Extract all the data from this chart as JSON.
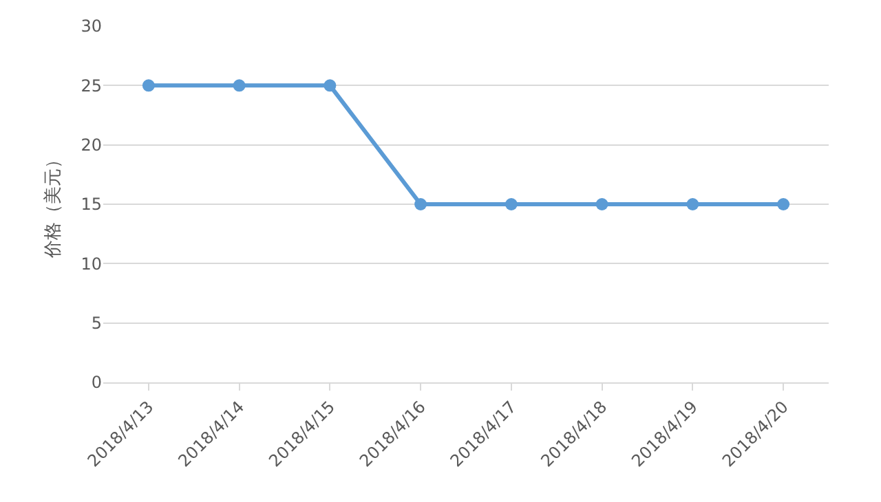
{
  "chart_data": {
    "type": "line",
    "ylabel": "价格（美元）",
    "categories": [
      "2018/4/13",
      "2018/4/14",
      "2018/4/15",
      "2018/4/16",
      "2018/4/17",
      "2018/4/18",
      "2018/4/19",
      "2018/4/20"
    ],
    "series": [
      {
        "color": "#5b9bd5",
        "values": [
          25,
          25,
          25,
          15,
          15,
          15,
          15,
          15
        ]
      }
    ],
    "ylim": [
      0,
      30
    ],
    "yticks": [
      0,
      5,
      10,
      15,
      20,
      25,
      30
    ],
    "grid": "y",
    "legend": false,
    "marker": "circle",
    "line_style": "solid"
  }
}
